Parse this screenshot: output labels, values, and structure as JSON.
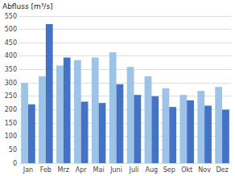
{
  "chart_data": {
    "type": "bar",
    "title": "Abfluss [m³/s]",
    "categories": [
      "Jan",
      "Feb",
      "Mrz",
      "Apr",
      "Mai",
      "Juni",
      "Juli",
      "Aug",
      "Sep",
      "Okt",
      "Nov",
      "Dez"
    ],
    "series": [
      {
        "color": "#9DC3E6",
        "values": [
          300,
          325,
          365,
          385,
          395,
          415,
          360,
          325,
          280,
          255,
          270,
          285
        ]
      },
      {
        "color": "#4472C4",
        "values": [
          220,
          520,
          395,
          230,
          225,
          295,
          255,
          250,
          210,
          235,
          215,
          200
        ]
      }
    ],
    "ylim": [
      0,
      550
    ],
    "yticks": [
      0,
      50,
      100,
      150,
      200,
      250,
      300,
      350,
      400,
      450,
      500,
      550
    ],
    "grid": true
  }
}
